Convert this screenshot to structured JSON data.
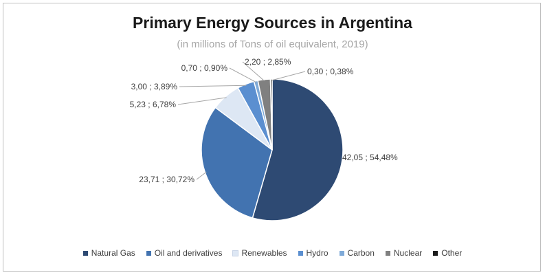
{
  "chart_data": {
    "type": "pie",
    "title": "Primary  Energy Sources in Argentina",
    "subtitle": "(in millions of Tons of oil equivalent, 2019)",
    "slices": [
      {
        "name": "Natural Gas",
        "value": 42.05,
        "label": "42,05 ; 54,48%",
        "color": "#2e4a73"
      },
      {
        "name": "Oil and derivatives",
        "value": 23.71,
        "label": "23,71 ; 30,72%",
        "color": "#4273b0"
      },
      {
        "name": "Renewables",
        "value": 5.23,
        "label": "5,23 ; 6,78%",
        "color": "#dde7f4"
      },
      {
        "name": "Hydro",
        "value": 3.0,
        "label": "3,00 ; 3,89%",
        "color": "#5b8fd0"
      },
      {
        "name": "Carbon",
        "value": 0.7,
        "label": "0,70 ; 0,90%",
        "color": "#7faad8"
      },
      {
        "name": "Nuclear",
        "value": 2.2,
        "label": "2,20 ; 2,85%",
        "color": "#808080"
      },
      {
        "name": "Other",
        "value": 0.3,
        "label": "0,30 ; 0,38%",
        "color": "#1c1c1c"
      }
    ],
    "legend_position": "bottom"
  }
}
